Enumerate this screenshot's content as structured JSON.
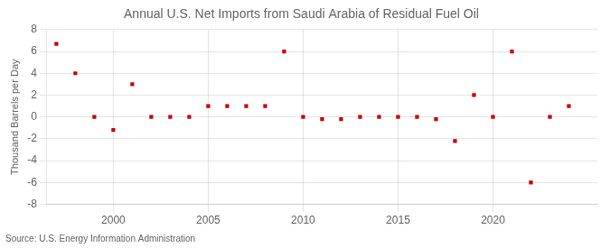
{
  "chart_data": {
    "type": "scatter",
    "title": "Annual U.S. Net Imports from Saudi Arabia of Residual Fuel Oil",
    "ylabel": "Thousand Barrels per Day",
    "annotation": "Source: U.S. Energy Information Administration",
    "x": [
      1997,
      1998,
      1999,
      2000,
      2001,
      2002,
      2003,
      2004,
      2005,
      2006,
      2007,
      2008,
      2009,
      2010,
      2011,
      2012,
      2013,
      2014,
      2015,
      2016,
      2017,
      2018,
      2019,
      2020,
      2021,
      2022,
      2023,
      2024
    ],
    "values": [
      6.7,
      4.0,
      0.0,
      -1.2,
      3.0,
      0.0,
      0.0,
      0.0,
      1.0,
      1.0,
      1.0,
      1.0,
      6.0,
      0.0,
      -0.2,
      -0.2,
      0.0,
      0.0,
      0.0,
      0.0,
      -0.2,
      -2.2,
      2.0,
      0.0,
      6.0,
      -6.0,
      0.0,
      1.0
    ],
    "color": "#cc0000",
    "marker": "square",
    "xlim": [
      1996.5,
      2025.5
    ],
    "xticks": [
      2000,
      2005,
      2010,
      2015,
      2020
    ],
    "ylim": [
      -8,
      8
    ],
    "yticks": [
      -8,
      -6,
      -4,
      -2,
      0,
      2,
      4,
      6,
      8
    ],
    "grid": true
  }
}
